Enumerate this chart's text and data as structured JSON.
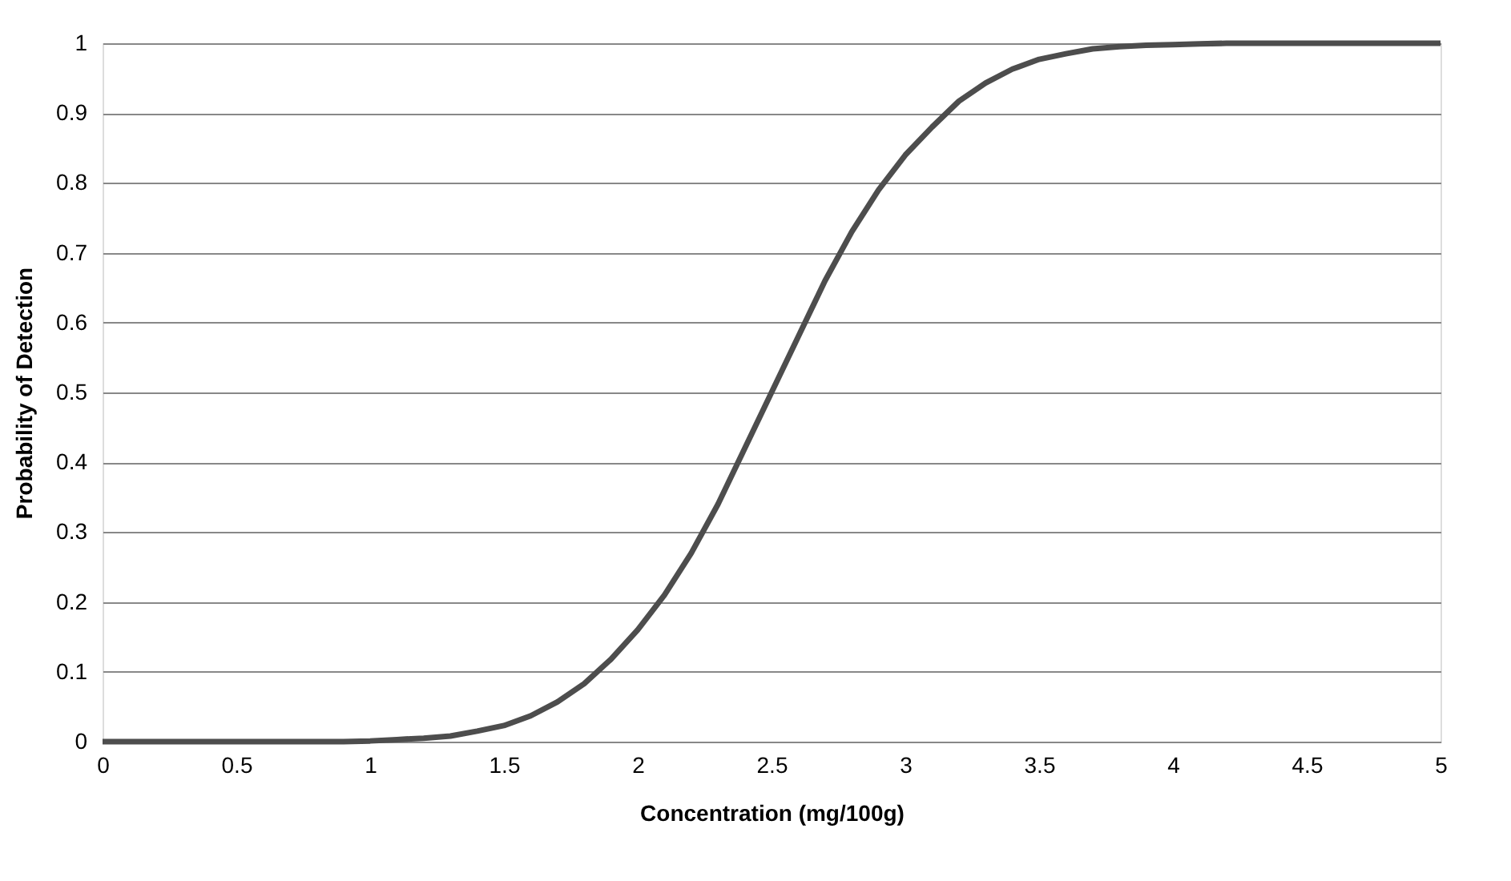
{
  "chart_data": {
    "type": "line",
    "xlabel": "Concentration (mg/100g)",
    "ylabel": "Probability of Detection",
    "x": [
      0,
      0.1,
      0.2,
      0.3,
      0.4,
      0.5,
      0.6,
      0.7,
      0.8,
      0.9,
      1.0,
      1.1,
      1.2,
      1.3,
      1.4,
      1.5,
      1.6,
      1.7,
      1.8,
      1.9,
      2.0,
      2.1,
      2.2,
      2.3,
      2.4,
      2.5,
      2.6,
      2.7,
      2.8,
      2.9,
      3.0,
      3.1,
      3.2,
      3.3,
      3.4,
      3.5,
      3.6,
      3.7,
      3.8,
      3.9,
      4.0,
      4.1,
      4.2,
      4.3,
      4.4,
      4.5,
      4.6,
      4.7,
      4.8,
      4.9,
      5.0
    ],
    "series": [
      {
        "color": "#4d4d4d",
        "values": [
          0,
          0,
          0,
          0,
          0,
          0,
          0,
          0,
          0,
          0,
          0.001,
          0.003,
          0.005,
          0.008,
          0.015,
          0.023,
          0.037,
          0.057,
          0.083,
          0.118,
          0.16,
          0.21,
          0.27,
          0.34,
          0.42,
          0.5,
          0.58,
          0.66,
          0.73,
          0.79,
          0.84,
          0.88,
          0.917,
          0.943,
          0.963,
          0.977,
          0.985,
          0.992,
          0.995,
          0.997,
          0.998,
          0.999,
          1,
          1,
          1,
          1,
          1,
          1,
          1,
          1,
          1
        ]
      }
    ],
    "xlim": [
      0,
      5
    ],
    "xticks": [
      0,
      0.5,
      1,
      1.5,
      2,
      2.5,
      3,
      3.5,
      4,
      4.5,
      5
    ],
    "ylim": [
      0,
      1
    ],
    "yticks": [
      0,
      0.1,
      0.2,
      0.3,
      0.4,
      0.5,
      0.6,
      0.7,
      0.8,
      0.9,
      1
    ],
    "grid": "y",
    "marker": "none",
    "line_style": "solid"
  }
}
